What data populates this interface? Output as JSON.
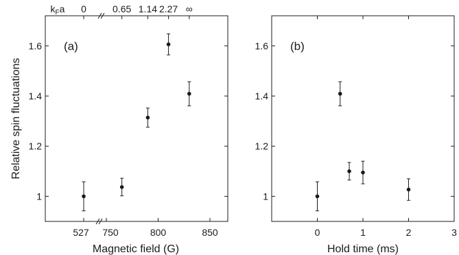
{
  "ylabel": "Relative spin fluctuations",
  "chart_data": [
    {
      "type": "scatter",
      "panel_label": "(a)",
      "xlabel": "Magnetic field (G)",
      "ylabel": "Relative spin fluctuations",
      "x_axis_break": true,
      "x_tick_labels": [
        "527",
        "750",
        "800",
        "850"
      ],
      "top_axis_label": "k_F a",
      "top_tick_labels": [
        "0",
        "0.65",
        "1.14",
        "2.27",
        "∞"
      ],
      "y_ticks": [
        1,
        1.2,
        1.4,
        1.6
      ],
      "ylim": [
        0.9,
        1.72
      ],
      "grid": false,
      "points": [
        {
          "x": 527,
          "y": 1.0,
          "err": 0.058
        },
        {
          "x": 765,
          "y": 1.037,
          "err": 0.035
        },
        {
          "x": 790,
          "y": 1.314,
          "err": 0.038
        },
        {
          "x": 810,
          "y": 1.606,
          "err": 0.042
        },
        {
          "x": 830,
          "y": 1.409,
          "err": 0.048
        }
      ]
    },
    {
      "type": "scatter",
      "panel_label": "(b)",
      "xlabel": "Hold time (ms)",
      "x_ticks": [
        0,
        1,
        2,
        3
      ],
      "xlim": [
        -1,
        3
      ],
      "y_ticks": [
        1,
        1.2,
        1.4,
        1.6
      ],
      "ylim": [
        0.9,
        1.72
      ],
      "grid": false,
      "points": [
        {
          "x": 0,
          "y": 1.0,
          "err": 0.058
        },
        {
          "x": 0.5,
          "y": 1.409,
          "err": 0.048
        },
        {
          "x": 0.7,
          "y": 1.1,
          "err": 0.035
        },
        {
          "x": 1.0,
          "y": 1.095,
          "err": 0.045
        },
        {
          "x": 2.0,
          "y": 1.027,
          "err": 0.043
        }
      ]
    }
  ]
}
